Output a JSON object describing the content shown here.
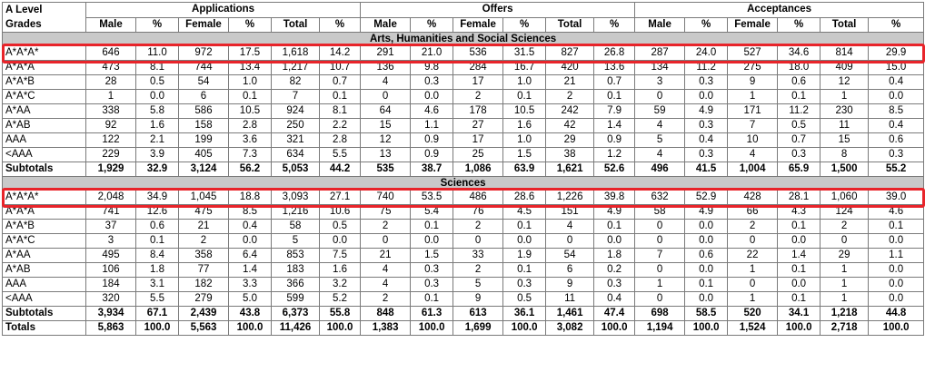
{
  "header": {
    "grade_label_line1": "A Level",
    "grade_label_line2": "Grades",
    "groups": [
      "Applications",
      "Offers",
      "Acceptances"
    ],
    "columns": [
      "Male",
      "%",
      "Female",
      "%",
      "Total",
      "%"
    ]
  },
  "sections": [
    {
      "title": "Arts, Humanities and Social Sciences",
      "rows": [
        {
          "grade": "A*A*A*",
          "values": [
            "646",
            "11.0",
            "972",
            "17.5",
            "1,618",
            "14.2",
            "291",
            "21.0",
            "536",
            "31.5",
            "827",
            "26.8",
            "287",
            "24.0",
            "527",
            "34.6",
            "814",
            "29.9"
          ]
        },
        {
          "grade": "A*A*A",
          "values": [
            "473",
            "8.1",
            "744",
            "13.4",
            "1,217",
            "10.7",
            "136",
            "9.8",
            "284",
            "16.7",
            "420",
            "13.6",
            "134",
            "11.2",
            "275",
            "18.0",
            "409",
            "15.0"
          ]
        },
        {
          "grade": "A*A*B",
          "values": [
            "28",
            "0.5",
            "54",
            "1.0",
            "82",
            "0.7",
            "4",
            "0.3",
            "17",
            "1.0",
            "21",
            "0.7",
            "3",
            "0.3",
            "9",
            "0.6",
            "12",
            "0.4"
          ]
        },
        {
          "grade": "A*A*C",
          "values": [
            "1",
            "0.0",
            "6",
            "0.1",
            "7",
            "0.1",
            "0",
            "0.0",
            "2",
            "0.1",
            "2",
            "0.1",
            "0",
            "0.0",
            "1",
            "0.1",
            "1",
            "0.0"
          ]
        },
        {
          "grade": "A*AA",
          "values": [
            "338",
            "5.8",
            "586",
            "10.5",
            "924",
            "8.1",
            "64",
            "4.6",
            "178",
            "10.5",
            "242",
            "7.9",
            "59",
            "4.9",
            "171",
            "11.2",
            "230",
            "8.5"
          ]
        },
        {
          "grade": "A*AB",
          "values": [
            "92",
            "1.6",
            "158",
            "2.8",
            "250",
            "2.2",
            "15",
            "1.1",
            "27",
            "1.6",
            "42",
            "1.4",
            "4",
            "0.3",
            "7",
            "0.5",
            "11",
            "0.4"
          ]
        },
        {
          "grade": "AAA",
          "values": [
            "122",
            "2.1",
            "199",
            "3.6",
            "321",
            "2.8",
            "12",
            "0.9",
            "17",
            "1.0",
            "29",
            "0.9",
            "5",
            "0.4",
            "10",
            "0.7",
            "15",
            "0.6"
          ]
        },
        {
          "grade": "<AAA",
          "values": [
            "229",
            "3.9",
            "405",
            "7.3",
            "634",
            "5.5",
            "13",
            "0.9",
            "25",
            "1.5",
            "38",
            "1.2",
            "4",
            "0.3",
            "4",
            "0.3",
            "8",
            "0.3"
          ]
        }
      ],
      "subtotal": {
        "label": "Subtotals",
        "values": [
          "1,929",
          "32.9",
          "3,124",
          "56.2",
          "5,053",
          "44.2",
          "535",
          "38.7",
          "1,086",
          "63.9",
          "1,621",
          "52.6",
          "496",
          "41.5",
          "1,004",
          "65.9",
          "1,500",
          "55.2"
        ]
      }
    },
    {
      "title": "Sciences",
      "rows": [
        {
          "grade": "A*A*A*",
          "values": [
            "2,048",
            "34.9",
            "1,045",
            "18.8",
            "3,093",
            "27.1",
            "740",
            "53.5",
            "486",
            "28.6",
            "1,226",
            "39.8",
            "632",
            "52.9",
            "428",
            "28.1",
            "1,060",
            "39.0"
          ]
        },
        {
          "grade": "A*A*A",
          "values": [
            "741",
            "12.6",
            "475",
            "8.5",
            "1,216",
            "10.6",
            "75",
            "5.4",
            "76",
            "4.5",
            "151",
            "4.9",
            "58",
            "4.9",
            "66",
            "4.3",
            "124",
            "4.6"
          ]
        },
        {
          "grade": "A*A*B",
          "values": [
            "37",
            "0.6",
            "21",
            "0.4",
            "58",
            "0.5",
            "2",
            "0.1",
            "2",
            "0.1",
            "4",
            "0.1",
            "0",
            "0.0",
            "2",
            "0.1",
            "2",
            "0.1"
          ]
        },
        {
          "grade": "A*A*C",
          "values": [
            "3",
            "0.1",
            "2",
            "0.0",
            "5",
            "0.0",
            "0",
            "0.0",
            "0",
            "0.0",
            "0",
            "0.0",
            "0",
            "0.0",
            "0",
            "0.0",
            "0",
            "0.0"
          ]
        },
        {
          "grade": "A*AA",
          "values": [
            "495",
            "8.4",
            "358",
            "6.4",
            "853",
            "7.5",
            "21",
            "1.5",
            "33",
            "1.9",
            "54",
            "1.8",
            "7",
            "0.6",
            "22",
            "1.4",
            "29",
            "1.1"
          ]
        },
        {
          "grade": "A*AB",
          "values": [
            "106",
            "1.8",
            "77",
            "1.4",
            "183",
            "1.6",
            "4",
            "0.3",
            "2",
            "0.1",
            "6",
            "0.2",
            "0",
            "0.0",
            "1",
            "0.1",
            "1",
            "0.0"
          ]
        },
        {
          "grade": "AAA",
          "values": [
            "184",
            "3.1",
            "182",
            "3.3",
            "366",
            "3.2",
            "4",
            "0.3",
            "5",
            "0.3",
            "9",
            "0.3",
            "1",
            "0.1",
            "0",
            "0.0",
            "1",
            "0.0"
          ]
        },
        {
          "grade": "<AAA",
          "values": [
            "320",
            "5.5",
            "279",
            "5.0",
            "599",
            "5.2",
            "2",
            "0.1",
            "9",
            "0.5",
            "11",
            "0.4",
            "0",
            "0.0",
            "1",
            "0.1",
            "1",
            "0.0"
          ]
        }
      ],
      "subtotal": {
        "label": "Subtotals",
        "values": [
          "3,934",
          "67.1",
          "2,439",
          "43.8",
          "6,373",
          "55.8",
          "848",
          "61.3",
          "613",
          "36.1",
          "1,461",
          "47.4",
          "698",
          "58.5",
          "520",
          "34.1",
          "1,218",
          "44.8"
        ]
      }
    }
  ],
  "totals": {
    "label": "Totals",
    "values": [
      "5,863",
      "100.0",
      "5,563",
      "100.0",
      "11,426",
      "100.0",
      "1,383",
      "100.0",
      "1,699",
      "100.0",
      "3,082",
      "100.0",
      "1,194",
      "100.0",
      "1,524",
      "100.0",
      "2,718",
      "100.0"
    ]
  },
  "highlight_color": "#e8242a"
}
